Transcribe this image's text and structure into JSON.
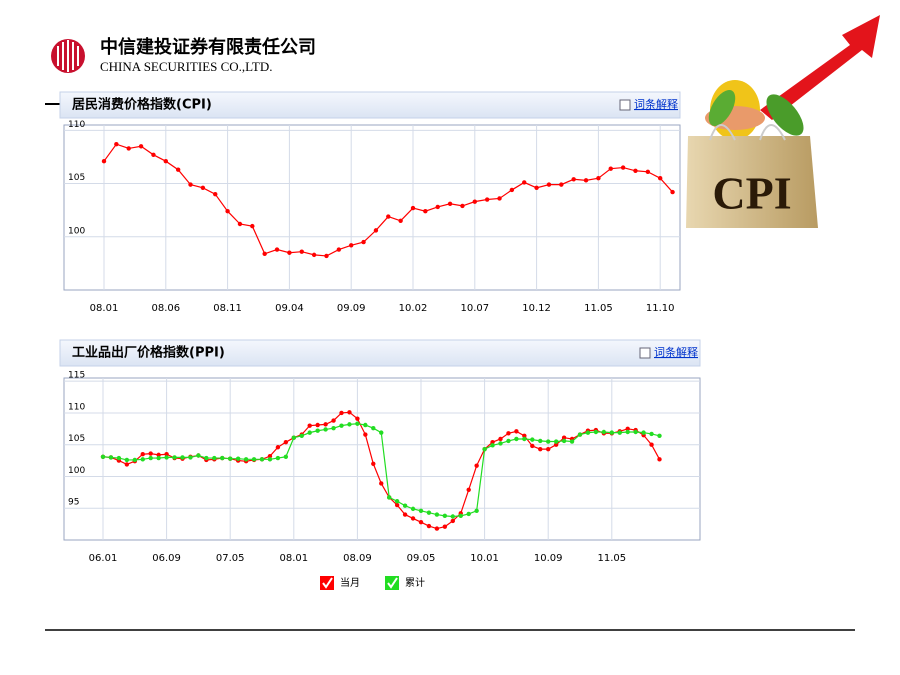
{
  "header": {
    "company": "中信建投证券有限责任公司",
    "company_en": "CHINA SECURITIES CO.,LTD."
  },
  "image": {
    "text": "CPI"
  },
  "chart_data": [
    {
      "type": "line",
      "title": "居民消费价格指数(CPI)",
      "link": "词条解释",
      "color": "#ff0000",
      "categories": [
        "08.01",
        null,
        null,
        null,
        null,
        "08.06",
        null,
        null,
        null,
        null,
        "08.11",
        null,
        null,
        null,
        null,
        "09.04",
        null,
        null,
        null,
        null,
        "09.09",
        null,
        null,
        null,
        null,
        "10.02",
        null,
        null,
        null,
        null,
        "10.07",
        null,
        null,
        null,
        null,
        "10.12",
        null,
        null,
        null,
        null,
        "11.05",
        null,
        null,
        null,
        null,
        "11.10",
        null
      ],
      "values": [
        107.1,
        108.7,
        108.3,
        108.5,
        107.7,
        107.1,
        106.3,
        104.9,
        104.6,
        104.0,
        102.4,
        101.2,
        101.0,
        98.4,
        98.8,
        98.5,
        98.6,
        98.3,
        98.2,
        98.8,
        99.2,
        99.5,
        100.6,
        101.9,
        101.5,
        102.7,
        102.4,
        102.8,
        103.1,
        102.9,
        103.3,
        103.5,
        103.6,
        104.4,
        105.1,
        104.6,
        104.9,
        104.9,
        105.4,
        105.3,
        105.5,
        106.4,
        106.5,
        106.2,
        106.1,
        105.5,
        104.2
      ],
      "ylim": [
        95,
        110.5
      ],
      "yticks": [
        100,
        105,
        110
      ],
      "grid": true
    },
    {
      "type": "line",
      "title": "工业品出厂价格指数(PPI)",
      "link": "词条解释",
      "categories": [
        "06.01",
        null,
        null,
        null,
        null,
        null,
        null,
        null,
        "06.09",
        null,
        null,
        null,
        null,
        null,
        null,
        null,
        "07.05",
        null,
        null,
        null,
        null,
        null,
        null,
        null,
        "08.01",
        null,
        null,
        null,
        null,
        null,
        null,
        null,
        "08.09",
        null,
        null,
        null,
        null,
        null,
        null,
        null,
        "09.05",
        null,
        null,
        null,
        null,
        null,
        null,
        null,
        "10.01",
        null,
        null,
        null,
        null,
        null,
        null,
        null,
        "10.09",
        null,
        null,
        null,
        null,
        null,
        null,
        null,
        "11.05",
        null,
        null,
        null,
        null,
        null,
        null
      ],
      "series": [
        {
          "name": "当月",
          "color": "#ff0000",
          "values": [
            103.1,
            103.0,
            102.5,
            101.9,
            102.4,
            103.5,
            103.6,
            103.4,
            103.5,
            102.9,
            102.8,
            103.1,
            103.3,
            102.6,
            102.7,
            102.9,
            102.8,
            102.5,
            102.4,
            102.6,
            102.7,
            103.2,
            104.6,
            105.4,
            106.1,
            106.6,
            108.0,
            108.1,
            108.2,
            108.8,
            110.0,
            110.1,
            109.1,
            106.6,
            102.0,
            98.9,
            96.7,
            95.5,
            94.0,
            93.4,
            92.8,
            92.2,
            91.8,
            92.1,
            93.0,
            94.2,
            97.9,
            101.7,
            104.3,
            105.4,
            105.9,
            106.8,
            107.1,
            106.4,
            104.8,
            104.3,
            104.3,
            105.0,
            106.1,
            105.9,
            106.6,
            107.2,
            107.3,
            106.8,
            106.8,
            107.1,
            107.5,
            107.3,
            106.5,
            105.0,
            102.7
          ]
        },
        {
          "name": "累计",
          "color": "#22dd22",
          "values": [
            103.1,
            103.0,
            102.9,
            102.6,
            102.6,
            102.7,
            102.9,
            102.9,
            103.0,
            103.0,
            103.0,
            103.0,
            103.3,
            102.9,
            102.9,
            102.9,
            102.8,
            102.8,
            102.7,
            102.7,
            102.7,
            102.7,
            102.9,
            103.1,
            106.1,
            106.4,
            106.9,
            107.2,
            107.4,
            107.6,
            108.0,
            108.2,
            108.3,
            108.1,
            107.6,
            106.9,
            96.7,
            96.1,
            95.4,
            94.9,
            94.6,
            94.3,
            94.0,
            93.8,
            93.7,
            93.8,
            94.1,
            94.6,
            104.3,
            104.9,
            105.2,
            105.6,
            105.9,
            105.9,
            105.8,
            105.6,
            105.5,
            105.5,
            105.6,
            105.5,
            106.6,
            106.9,
            107.0,
            107.0,
            106.9,
            106.9,
            107.0,
            107.0,
            106.9,
            106.7,
            106.4
          ]
        }
      ],
      "ylim": [
        90,
        115.5
      ],
      "yticks": [
        95,
        100,
        105,
        110,
        115
      ],
      "grid": true
    }
  ]
}
